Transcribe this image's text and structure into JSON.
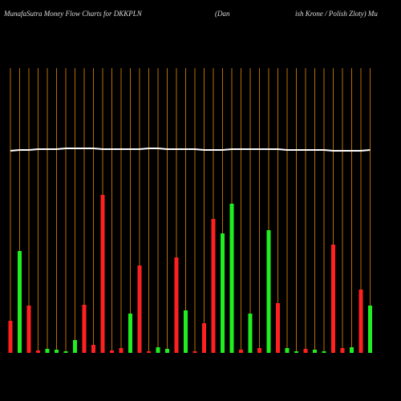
{
  "chart_data": {
    "type": "bar",
    "title": "MunafaSutra  Money Flow  Charts for DKKPLN",
    "subtitle": [
      "(Dan",
      "ish Krone    / Polish Zloty) Mu"
    ],
    "values": [
      40,
      127,
      59,
      3,
      5,
      4,
      2,
      16,
      60,
      10,
      197,
      3,
      6,
      49,
      109,
      2,
      7,
      5,
      119,
      53,
      2,
      37,
      167,
      149,
      186,
      4,
      49,
      6,
      153,
      62,
      6,
      2,
      5,
      4,
      2,
      135,
      6,
      7,
      79,
      59
    ],
    "colors": [
      "#ff2020",
      "#20ee20",
      "#ff2020",
      "#ff2020",
      "#20ee20",
      "#20ee20",
      "#20ee20",
      "#20ee20",
      "#ff2020",
      "#ff2020",
      "#ff2020",
      "#ff2020",
      "#ff2020",
      "#20ee20",
      "#ff2020",
      "#ff2020",
      "#20ee20",
      "#20ee20",
      "#ff2020",
      "#20ee20",
      "#ff2020",
      "#ff2020",
      "#ff2020",
      "#20ee20",
      "#20ee20",
      "#ff2020",
      "#20ee20",
      "#ff2020",
      "#20ee20",
      "#ff2020",
      "#20ee20",
      "#20ee20",
      "#ff2020",
      "#20ee20",
      "#20ee20",
      "#ff2020",
      "#ff2020",
      "#20ee20",
      "#ff2020",
      "#20ee20"
    ],
    "line": {
      "color": "#ffffff",
      "values": [
        252,
        253,
        253,
        254,
        254,
        254,
        255,
        255,
        255,
        255,
        254,
        254,
        254,
        254,
        254,
        255,
        255,
        254,
        254,
        254,
        254,
        253,
        253,
        253,
        254,
        254,
        254,
        254,
        254,
        254,
        253,
        253,
        253,
        253,
        253,
        252,
        252,
        252,
        252,
        253
      ]
    },
    "separator_color": "#b86e00",
    "ylim": [
      0,
      355
    ]
  }
}
